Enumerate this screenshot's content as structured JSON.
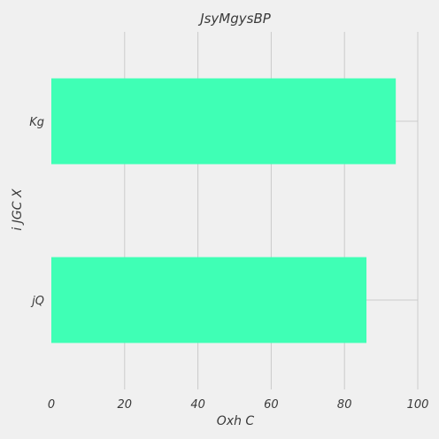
{
  "chart_data": {
    "type": "bar",
    "orientation": "horizontal",
    "title": "JsyMgysBP",
    "xlabel": "Oxh C",
    "ylabel": "i JGC X",
    "categories": [
      "Kg",
      "jQ"
    ],
    "values": [
      94,
      86
    ],
    "xlim": [
      0,
      100
    ],
    "xticks": [
      0,
      20,
      40,
      60,
      80,
      100
    ],
    "grid": true,
    "bar_color": "#3fffb5"
  }
}
